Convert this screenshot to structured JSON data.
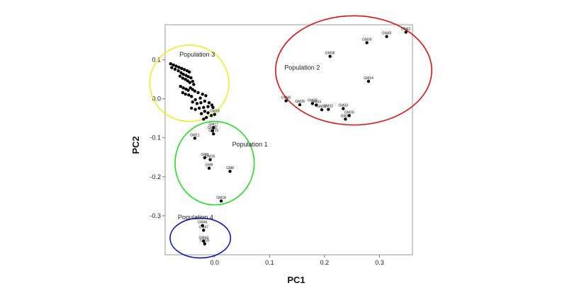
{
  "chart_data": {
    "type": "scatter",
    "title": "",
    "xlabel": "PC1",
    "ylabel": "PC2",
    "xlim": [
      -0.09,
      0.36
    ],
    "ylim": [
      -0.4,
      0.19
    ],
    "x_ticks": [
      {
        "value": 0.0,
        "label": "0.0"
      },
      {
        "value": 0.1,
        "label": "0.1"
      },
      {
        "value": 0.2,
        "label": "0.2"
      },
      {
        "value": 0.3,
        "label": "0.3"
      }
    ],
    "y_ticks": [
      {
        "value": 0.1,
        "label": "0.1"
      },
      {
        "value": 0.0,
        "label": "0.0"
      },
      {
        "value": -0.1,
        "label": "-0.1"
      },
      {
        "value": -0.2,
        "label": "-0.2"
      },
      {
        "value": -0.3,
        "label": "-0.3"
      }
    ],
    "grid": false,
    "colors": {
      "point": "#000000",
      "population_1": "#22dd22",
      "population_2": "#dd1111",
      "population_3": "#eeee22",
      "population_4": "#1111bb"
    },
    "groups": [
      {
        "name": "Population 1",
        "color": "#22dd22",
        "cx": 0.0,
        "cy": -0.165,
        "rx": 0.072,
        "ry": 0.107,
        "label_x": 0.032,
        "label_y": -0.122
      },
      {
        "name": "Population 2",
        "color": "#dd1111",
        "cx": 0.253,
        "cy": 0.073,
        "rx": 0.142,
        "ry": 0.14,
        "label_x": 0.127,
        "label_y": 0.075
      },
      {
        "name": "Population 3",
        "color": "#eeee22",
        "cx": -0.046,
        "cy": 0.04,
        "rx": 0.072,
        "ry": 0.098,
        "label_x": -0.064,
        "label_y": 0.108
      },
      {
        "name": "Population 4",
        "color": "#1111bb",
        "cx": -0.026,
        "cy": -0.357,
        "rx": 0.055,
        "ry": 0.051,
        "label_x": -0.067,
        "label_y": -0.309
      }
    ],
    "series": [
      {
        "name": "",
        "points": [
          {
            "x": 0.348,
            "y": 0.171,
            "label": "GM42"
          },
          {
            "x": 0.313,
            "y": 0.16,
            "label": "GM45"
          },
          {
            "x": 0.277,
            "y": 0.144,
            "label": "GM39"
          },
          {
            "x": 0.21,
            "y": 0.109,
            "label": "GM38"
          },
          {
            "x": 0.28,
            "y": 0.045,
            "label": "GM14"
          },
          {
            "x": 0.13,
            "y": -0.005,
            "label": "GM40"
          },
          {
            "x": 0.155,
            "y": -0.015,
            "label": "GM28"
          },
          {
            "x": 0.178,
            "y": -0.012,
            "label": "GM35"
          },
          {
            "x": 0.185,
            "y": -0.016,
            "label": "GM34"
          },
          {
            "x": 0.195,
            "y": -0.028,
            "label": "GM32"
          },
          {
            "x": 0.207,
            "y": -0.027,
            "label": "GM32"
          },
          {
            "x": 0.234,
            "y": -0.025,
            "label": "GM33"
          },
          {
            "x": 0.245,
            "y": -0.043,
            "label": "GM36"
          },
          {
            "x": 0.238,
            "y": -0.052,
            "label": "GM37"
          },
          {
            "x": -0.08,
            "y": 0.09,
            "label": ""
          },
          {
            "x": -0.075,
            "y": 0.087,
            "label": ""
          },
          {
            "x": -0.07,
            "y": 0.084,
            "label": ""
          },
          {
            "x": -0.065,
            "y": 0.081,
            "label": ""
          },
          {
            "x": -0.06,
            "y": 0.078,
            "label": ""
          },
          {
            "x": -0.055,
            "y": 0.075,
            "label": ""
          },
          {
            "x": -0.05,
            "y": 0.072,
            "label": ""
          },
          {
            "x": -0.046,
            "y": 0.069,
            "label": ""
          },
          {
            "x": -0.078,
            "y": 0.08,
            "label": ""
          },
          {
            "x": -0.072,
            "y": 0.076,
            "label": ""
          },
          {
            "x": -0.066,
            "y": 0.072,
            "label": ""
          },
          {
            "x": -0.061,
            "y": 0.067,
            "label": ""
          },
          {
            "x": -0.057,
            "y": 0.063,
            "label": ""
          },
          {
            "x": -0.052,
            "y": 0.06,
            "label": ""
          },
          {
            "x": -0.048,
            "y": 0.057,
            "label": ""
          },
          {
            "x": -0.043,
            "y": 0.054,
            "label": ""
          },
          {
            "x": -0.063,
            "y": 0.058,
            "label": ""
          },
          {
            "x": -0.058,
            "y": 0.053,
            "label": ""
          },
          {
            "x": -0.053,
            "y": 0.05,
            "label": ""
          },
          {
            "x": -0.049,
            "y": 0.046,
            "label": ""
          },
          {
            "x": -0.045,
            "y": 0.042,
            "label": ""
          },
          {
            "x": -0.04,
            "y": 0.045,
            "label": ""
          },
          {
            "x": -0.038,
            "y": 0.037,
            "label": ""
          },
          {
            "x": -0.062,
            "y": 0.032,
            "label": ""
          },
          {
            "x": -0.057,
            "y": 0.028,
            "label": ""
          },
          {
            "x": -0.052,
            "y": 0.025,
            "label": ""
          },
          {
            "x": -0.048,
            "y": 0.022,
            "label": ""
          },
          {
            "x": -0.044,
            "y": 0.028,
            "label": ""
          },
          {
            "x": -0.04,
            "y": 0.024,
            "label": ""
          },
          {
            "x": -0.036,
            "y": 0.02,
            "label": ""
          },
          {
            "x": -0.058,
            "y": 0.016,
            "label": ""
          },
          {
            "x": -0.053,
            "y": 0.012,
            "label": ""
          },
          {
            "x": -0.047,
            "y": 0.01,
            "label": ""
          },
          {
            "x": -0.042,
            "y": 0.006,
            "label": ""
          },
          {
            "x": -0.03,
            "y": 0.016,
            "label": ""
          },
          {
            "x": -0.022,
            "y": 0.012,
            "label": ""
          },
          {
            "x": -0.016,
            "y": 0.008,
            "label": ""
          },
          {
            "x": -0.026,
            "y": 0.002,
            "label": ""
          },
          {
            "x": -0.035,
            "y": -0.002,
            "label": ""
          },
          {
            "x": -0.04,
            "y": -0.008,
            "label": ""
          },
          {
            "x": -0.032,
            "y": -0.012,
            "label": ""
          },
          {
            "x": -0.025,
            "y": -0.01,
            "label": ""
          },
          {
            "x": -0.018,
            "y": -0.006,
            "label": ""
          },
          {
            "x": -0.01,
            "y": -0.01,
            "label": ""
          },
          {
            "x": -0.005,
            "y": -0.016,
            "label": ""
          },
          {
            "x": -0.003,
            "y": -0.022,
            "label": ""
          },
          {
            "x": -0.012,
            "y": -0.02,
            "label": ""
          },
          {
            "x": -0.02,
            "y": -0.022,
            "label": ""
          },
          {
            "x": -0.028,
            "y": -0.024,
            "label": ""
          },
          {
            "x": -0.035,
            "y": -0.027,
            "label": ""
          },
          {
            "x": -0.042,
            "y": -0.024,
            "label": ""
          },
          {
            "x": -0.018,
            "y": -0.032,
            "label": ""
          },
          {
            "x": -0.024,
            "y": -0.038,
            "label": ""
          },
          {
            "x": -0.012,
            "y": -0.036,
            "label": ""
          },
          {
            "x": -0.006,
            "y": -0.043,
            "label": ""
          },
          {
            "x": 0.0,
            "y": -0.04,
            "label": "GM18"
          },
          {
            "x": -0.015,
            "y": -0.048,
            "label": ""
          },
          {
            "x": -0.02,
            "y": -0.052,
            "label": ""
          },
          {
            "x": -0.002,
            "y": -0.074,
            "label": "GM17"
          },
          {
            "x": -0.004,
            "y": -0.082,
            "label": "GM20"
          },
          {
            "x": -0.002,
            "y": -0.09,
            "label": "GM19"
          },
          {
            "x": -0.036,
            "y": -0.101,
            "label": "GM11"
          },
          {
            "x": -0.018,
            "y": -0.151,
            "label": "GM3"
          },
          {
            "x": -0.008,
            "y": -0.156,
            "label": "GM16"
          },
          {
            "x": -0.01,
            "y": -0.178,
            "label": "GM9"
          },
          {
            "x": 0.028,
            "y": -0.186,
            "label": "GM8"
          },
          {
            "x": 0.012,
            "y": -0.262,
            "label": "GM18"
          },
          {
            "x": -0.022,
            "y": -0.325,
            "label": "GM46"
          },
          {
            "x": -0.02,
            "y": -0.337,
            "label": "GM47"
          },
          {
            "x": -0.02,
            "y": -0.365,
            "label": "GM44"
          },
          {
            "x": -0.018,
            "y": -0.372,
            "label": "GM35"
          }
        ]
      }
    ]
  }
}
